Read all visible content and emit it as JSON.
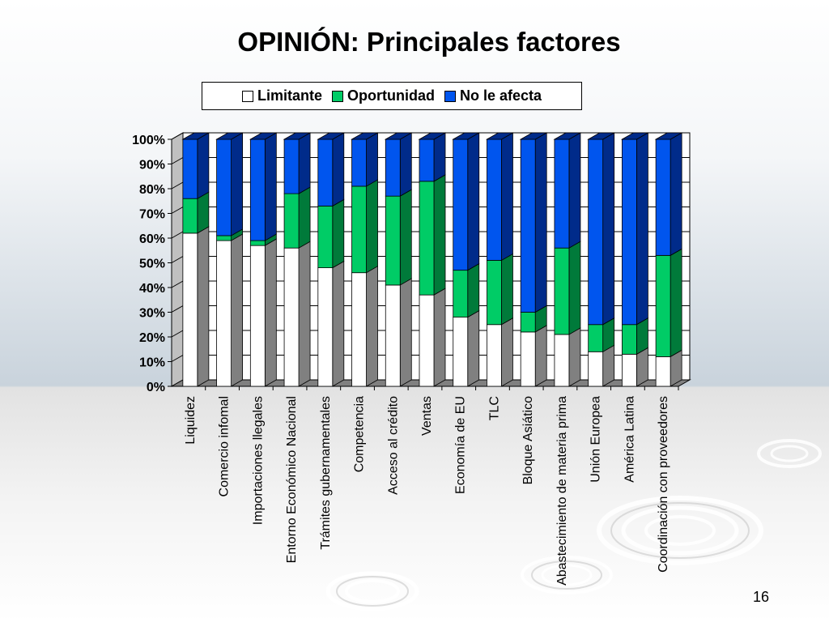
{
  "slide": {
    "title": "OPINIÓN: Principales factores",
    "page_number": "16"
  },
  "chart_data": {
    "type": "bar",
    "stacked": true,
    "percent_stacked": true,
    "three_d": true,
    "categories": [
      "Liquidez",
      "Comercio infomal",
      "Importaciones llegales",
      "Entorno Económico Nacional",
      "Trámites gubernamentales",
      "Competencia",
      "Acceso al crédito",
      "Ventas",
      "Economía de EU",
      "TLC",
      "Bloque Asiático",
      "Abastecimiento de materia prima",
      "Unión Europea",
      "América Latina",
      "Coordinación con proveedores"
    ],
    "series": [
      {
        "name": "Limitante",
        "color": "#ffffff",
        "side_color": "#808080",
        "values": [
          62,
          59,
          57,
          56,
          48,
          46,
          41,
          37,
          28,
          25,
          22,
          21,
          14,
          13,
          12
        ]
      },
      {
        "name": "Oportunidad",
        "color": "#00cc66",
        "side_color": "#007a3a",
        "values": [
          14,
          2,
          2,
          22,
          25,
          35,
          36,
          46,
          19,
          26,
          8,
          35,
          11,
          12,
          41
        ]
      },
      {
        "name": "No le afecta",
        "color": "#0055ee",
        "side_color": "#002b8a",
        "values": [
          24,
          39,
          41,
          22,
          27,
          19,
          23,
          17,
          53,
          49,
          70,
          44,
          75,
          75,
          47
        ]
      }
    ],
    "ylim": [
      0,
      100
    ],
    "yticks": [
      "0%",
      "10%",
      "20%",
      "30%",
      "40%",
      "50%",
      "60%",
      "70%",
      "80%",
      "90%",
      "100%"
    ],
    "legend_position": "top",
    "grid": true
  }
}
